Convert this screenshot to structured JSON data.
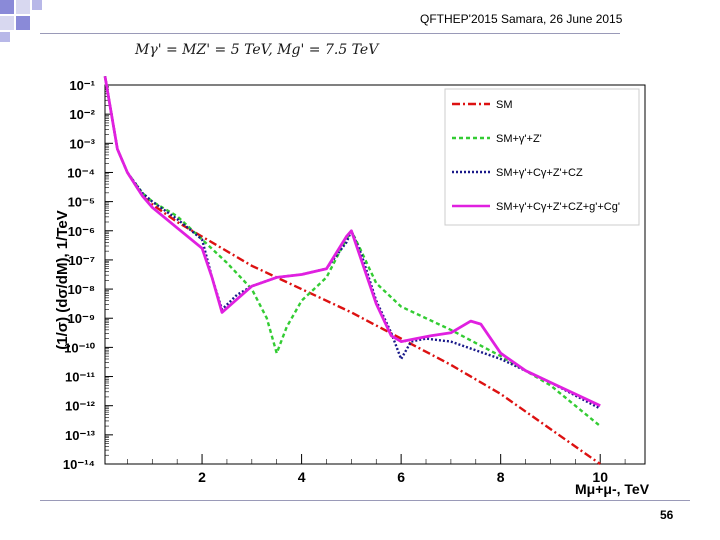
{
  "header": {
    "conference": "QFTHEP'2015 Samara,  26 June 2015",
    "formula": "Mγ' = MZ' = 5 TeV,   Mg' = 7.5 TeV"
  },
  "footer": {
    "page_number": "56"
  },
  "chart_data": {
    "type": "line",
    "title": "",
    "xlabel": "Mμ+μ-, TeV",
    "ylabel": "(1/σ) (dσ/dM), 1/TeV",
    "xlim": [
      0.05,
      10.9
    ],
    "ylim_log10": [
      -14,
      -1
    ],
    "y_scale": "log",
    "x_ticks": [
      2,
      4,
      6,
      8,
      10
    ],
    "y_ticks": [
      "10⁻¹",
      "10⁻²",
      "10⁻³",
      "10⁻⁴",
      "10⁻⁵",
      "10⁻⁶",
      "10⁻⁷",
      "10⁻⁸",
      "10⁻⁹",
      "10⁻¹⁰",
      "10⁻¹¹",
      "10⁻¹²",
      "10⁻¹³",
      "10⁻¹⁴"
    ],
    "legend_position": "top-right",
    "series": [
      {
        "name": "SM",
        "color": "#dd1111",
        "dash": "8 3 2 3",
        "points": [
          [
            0.05,
            -0.7
          ],
          [
            0.3,
            -3.2
          ],
          [
            0.5,
            -4.0
          ],
          [
            0.8,
            -4.8
          ],
          [
            1.0,
            -5.1
          ],
          [
            1.5,
            -5.7
          ],
          [
            2.0,
            -6.2
          ],
          [
            3.0,
            -7.2
          ],
          [
            4.0,
            -8.0
          ],
          [
            5.0,
            -8.8
          ],
          [
            6.0,
            -9.7
          ],
          [
            7.0,
            -10.6
          ],
          [
            8.0,
            -11.6
          ],
          [
            9.0,
            -12.8
          ],
          [
            10.0,
            -14.0
          ]
        ]
      },
      {
        "name": "SM+γ'+Z'",
        "color": "#33cc33",
        "dash": "4 3",
        "points": [
          [
            0.05,
            -0.7
          ],
          [
            0.3,
            -3.2
          ],
          [
            0.5,
            -4.0
          ],
          [
            0.8,
            -4.7
          ],
          [
            1.0,
            -5.0
          ],
          [
            1.5,
            -5.5
          ],
          [
            2.0,
            -6.3
          ],
          [
            2.5,
            -7.1
          ],
          [
            3.0,
            -8.0
          ],
          [
            3.3,
            -9.0
          ],
          [
            3.5,
            -10.2
          ],
          [
            3.7,
            -9.3
          ],
          [
            4.0,
            -8.4
          ],
          [
            4.5,
            -7.6
          ],
          [
            4.8,
            -6.6
          ],
          [
            5.0,
            -6.0
          ],
          [
            5.2,
            -6.7
          ],
          [
            5.5,
            -7.8
          ],
          [
            6.0,
            -8.6
          ],
          [
            7.0,
            -9.4
          ],
          [
            8.0,
            -10.3
          ],
          [
            9.0,
            -11.3
          ],
          [
            10.0,
            -12.7
          ]
        ]
      },
      {
        "name": "SM+γ'+Cγ+Z'+CZ",
        "color": "#1a1a8a",
        "dash": "2 2",
        "points": [
          [
            0.05,
            -0.7
          ],
          [
            0.3,
            -3.2
          ],
          [
            0.5,
            -4.0
          ],
          [
            0.8,
            -4.7
          ],
          [
            1.0,
            -5.0
          ],
          [
            1.5,
            -5.6
          ],
          [
            2.0,
            -6.3
          ],
          [
            2.2,
            -7.6
          ],
          [
            2.4,
            -8.7
          ],
          [
            2.7,
            -8.2
          ],
          [
            3.0,
            -7.9
          ],
          [
            3.5,
            -7.6
          ],
          [
            4.0,
            -7.5
          ],
          [
            4.5,
            -7.3
          ],
          [
            4.9,
            -6.4
          ],
          [
            5.0,
            -6.0
          ],
          [
            5.2,
            -6.8
          ],
          [
            5.5,
            -8.4
          ],
          [
            5.8,
            -9.5
          ],
          [
            6.0,
            -10.4
          ],
          [
            6.2,
            -9.8
          ],
          [
            6.5,
            -9.7
          ],
          [
            7.0,
            -9.8
          ],
          [
            8.0,
            -10.4
          ],
          [
            9.0,
            -11.2
          ],
          [
            10.0,
            -12.1
          ]
        ]
      },
      {
        "name": "SM+γ'+Cγ+Z'+CZ+g'+Cg'",
        "color": "#e020e0",
        "dash": "",
        "points": [
          [
            0.05,
            -0.7
          ],
          [
            0.3,
            -3.2
          ],
          [
            0.5,
            -4.0
          ],
          [
            0.8,
            -4.8
          ],
          [
            1.0,
            -5.2
          ],
          [
            1.5,
            -5.9
          ],
          [
            2.0,
            -6.6
          ],
          [
            2.2,
            -7.6
          ],
          [
            2.4,
            -8.8
          ],
          [
            2.6,
            -8.5
          ],
          [
            3.0,
            -7.9
          ],
          [
            3.5,
            -7.6
          ],
          [
            4.0,
            -7.5
          ],
          [
            4.5,
            -7.3
          ],
          [
            4.9,
            -6.2
          ],
          [
            5.0,
            -6.0
          ],
          [
            5.2,
            -7.0
          ],
          [
            5.5,
            -8.5
          ],
          [
            5.8,
            -9.6
          ],
          [
            6.0,
            -9.8
          ],
          [
            6.3,
            -9.7
          ],
          [
            6.6,
            -9.6
          ],
          [
            7.0,
            -9.5
          ],
          [
            7.4,
            -9.1
          ],
          [
            7.6,
            -9.2
          ],
          [
            8.0,
            -10.2
          ],
          [
            8.5,
            -10.8
          ],
          [
            9.0,
            -11.2
          ],
          [
            10.0,
            -12.0
          ]
        ]
      }
    ]
  }
}
